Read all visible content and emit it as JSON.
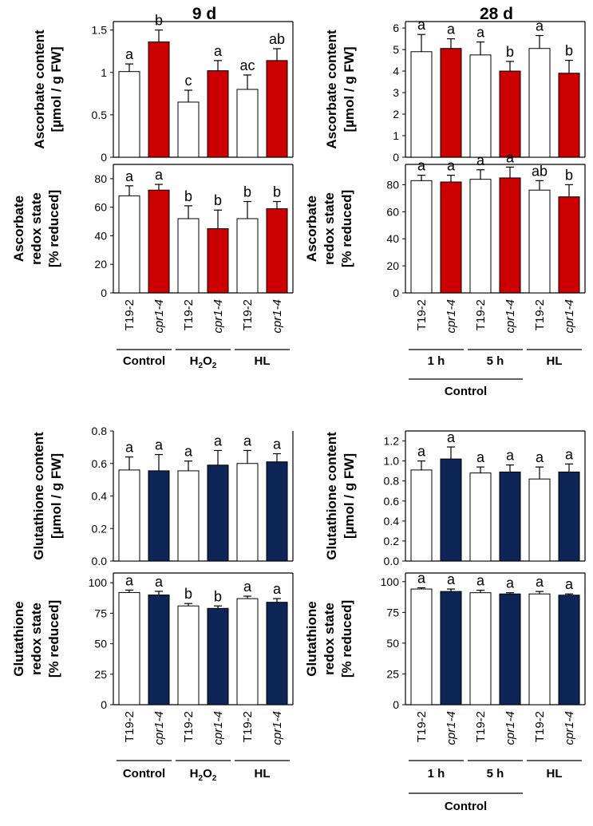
{
  "panel_titles": {
    "left": "9 d",
    "right": "28 d"
  },
  "groups": {
    "left": [
      "Control",
      "H2O2",
      "HL"
    ],
    "right_sub": [
      "1 h",
      "5 h",
      "HL"
    ],
    "right_super": "Control"
  },
  "chart_data": [
    {
      "id": "asc9",
      "type": "bar",
      "title": "Ascorbate content, 9 d",
      "ylabel": [
        "Ascorbate content",
        "[µmol / g FW]"
      ],
      "ylim": [
        0,
        1.6
      ],
      "yticks": [
        0,
        0.5,
        1,
        1.5
      ],
      "tick_labels": [
        "0",
        "0.5",
        "1",
        "1.5"
      ],
      "categories": [
        "T19-2",
        "cpr1-4",
        "T19-2",
        "cpr1-4",
        "T19-2",
        "cpr1-4"
      ],
      "values": [
        1.01,
        1.36,
        0.65,
        1.02,
        0.8,
        1.14
      ],
      "errors": [
        0.09,
        0.14,
        0.14,
        0.12,
        0.17,
        0.14
      ],
      "letters": [
        "a",
        "b",
        "c",
        "a",
        "ac",
        "ab"
      ],
      "colors": [
        "#ffffff",
        "#cc0000",
        "#ffffff",
        "#cc0000",
        "#ffffff",
        "#cc0000"
      ]
    },
    {
      "id": "asr9",
      "type": "bar",
      "title": "Ascorbate redox state, 9 d",
      "ylabel": [
        "Ascorbate",
        "redox state",
        "[% reduced]"
      ],
      "ylim": [
        0,
        90
      ],
      "yticks": [
        0,
        20,
        40,
        60,
        80
      ],
      "tick_labels": [
        "0",
        "20",
        "40",
        "60",
        "80"
      ],
      "categories": [
        "T19-2",
        "cpr1-4",
        "T19-2",
        "cpr1-4",
        "T19-2",
        "cpr1-4"
      ],
      "values": [
        68,
        72,
        52,
        45,
        52,
        59
      ],
      "errors": [
        7,
        4,
        9,
        13,
        12,
        5
      ],
      "letters": [
        "a",
        "a",
        "b",
        "b",
        "b",
        "b"
      ],
      "colors": [
        "#ffffff",
        "#cc0000",
        "#ffffff",
        "#cc0000",
        "#ffffff",
        "#cc0000"
      ]
    },
    {
      "id": "asc28",
      "type": "bar",
      "title": "Ascorbate content, 28 d",
      "ylabel": [
        "Ascorbate content",
        "[µmol / g FW]"
      ],
      "ylim": [
        0,
        6.3
      ],
      "yticks": [
        0,
        1,
        2,
        3,
        4,
        5,
        6
      ],
      "tick_labels": [
        "0",
        "1",
        "2",
        "3",
        "4",
        "5",
        "6"
      ],
      "categories": [
        "T19-2",
        "cpr1-4",
        "T19-2",
        "cpr1-4",
        "T19-2",
        "cpr1-4"
      ],
      "values": [
        4.9,
        5.05,
        4.75,
        4.0,
        5.05,
        3.9
      ],
      "errors": [
        0.8,
        0.45,
        0.6,
        0.45,
        0.6,
        0.6
      ],
      "letters": [
        "a",
        "a",
        "a",
        "b",
        "a",
        "b"
      ],
      "colors": [
        "#ffffff",
        "#cc0000",
        "#ffffff",
        "#cc0000",
        "#ffffff",
        "#cc0000"
      ]
    },
    {
      "id": "asr28",
      "type": "bar",
      "title": "Ascorbate redox state, 28 d",
      "ylabel": [
        "Ascorbate",
        "redox state",
        "[% reduced]"
      ],
      "ylim": [
        0,
        95
      ],
      "yticks": [
        0,
        20,
        40,
        60,
        80
      ],
      "tick_labels": [
        "0",
        "20",
        "40",
        "60",
        "80"
      ],
      "categories": [
        "T19-2",
        "cpr1-4",
        "T19-2",
        "cpr1-4",
        "T19-2",
        "cpr1-4"
      ],
      "values": [
        83,
        82,
        84,
        85,
        76,
        71
      ],
      "errors": [
        4,
        5,
        7,
        8,
        7,
        9
      ],
      "letters": [
        "a",
        "a",
        "a",
        "a",
        "ab",
        "b"
      ],
      "colors": [
        "#ffffff",
        "#cc0000",
        "#ffffff",
        "#cc0000",
        "#ffffff",
        "#cc0000"
      ]
    },
    {
      "id": "glc9",
      "type": "bar",
      "title": "Glutathione content, 9 d",
      "ylabel": [
        "Glutathione content",
        "[µmol / g FW]"
      ],
      "ylim": [
        0,
        0.8
      ],
      "yticks": [
        0,
        0.2,
        0.4,
        0.6,
        0.8
      ],
      "tick_labels": [
        "0.0",
        "0.2",
        "0.4",
        "0.6",
        "0.8"
      ],
      "categories": [
        "T19-2",
        "cpr1-4",
        "T19-2",
        "cpr1-4",
        "T19-2",
        "cpr1-4"
      ],
      "values": [
        0.56,
        0.555,
        0.555,
        0.59,
        0.6,
        0.61
      ],
      "errors": [
        0.08,
        0.1,
        0.06,
        0.09,
        0.08,
        0.05
      ],
      "letters": [
        "a",
        "a",
        "a",
        "a",
        "a",
        "a"
      ],
      "colors": [
        "#ffffff",
        "#0d2457",
        "#ffffff",
        "#0d2457",
        "#ffffff",
        "#0d2457"
      ]
    },
    {
      "id": "glr9",
      "type": "bar",
      "title": "Glutathione redox state, 9 d",
      "ylabel": [
        "Glutathione",
        "redox state",
        "[% reduced]"
      ],
      "ylim": [
        0,
        108
      ],
      "yticks": [
        0,
        25,
        50,
        75,
        100
      ],
      "tick_labels": [
        "0",
        "25",
        "50",
        "75",
        "100"
      ],
      "categories": [
        "T19-2",
        "cpr1-4",
        "T19-2",
        "cpr1-4",
        "T19-2",
        "cpr1-4"
      ],
      "values": [
        92,
        90,
        81,
        79,
        87,
        84
      ],
      "errors": [
        2,
        3,
        2,
        2,
        2,
        3
      ],
      "letters": [
        "a",
        "a",
        "b",
        "b",
        "a",
        "a"
      ],
      "colors": [
        "#ffffff",
        "#0d2457",
        "#ffffff",
        "#0d2457",
        "#ffffff",
        "#0d2457"
      ]
    },
    {
      "id": "glc28",
      "type": "bar",
      "title": "Glutathione content, 28 d",
      "ylabel": [
        "Glutathione content",
        "[µmol / g FW]"
      ],
      "ylim": [
        0,
        1.3
      ],
      "yticks": [
        0,
        0.2,
        0.4,
        0.6,
        0.8,
        1.0,
        1.2
      ],
      "tick_labels": [
        "0.0",
        "0.2",
        "0.4",
        "0.6",
        "0.8",
        "1.0",
        "1.2"
      ],
      "categories": [
        "T19-2",
        "cpr1-4",
        "T19-2",
        "cpr1-4",
        "T19-2",
        "cpr1-4"
      ],
      "values": [
        0.91,
        1.02,
        0.88,
        0.89,
        0.82,
        0.89
      ],
      "errors": [
        0.09,
        0.12,
        0.06,
        0.07,
        0.12,
        0.08
      ],
      "letters": [
        "a",
        "a",
        "a",
        "a",
        "a",
        "a"
      ],
      "colors": [
        "#ffffff",
        "#0d2457",
        "#ffffff",
        "#0d2457",
        "#ffffff",
        "#0d2457"
      ]
    },
    {
      "id": "glr28",
      "type": "bar",
      "title": "Glutathione redox state, 28 d",
      "ylabel": [
        "Glutathione",
        "redox state",
        "[% reduced]"
      ],
      "ylim": [
        0,
        107
      ],
      "yticks": [
        0,
        25,
        50,
        75,
        100
      ],
      "tick_labels": [
        "0",
        "25",
        "50",
        "75",
        "100"
      ],
      "categories": [
        "T19-2",
        "cpr1-4",
        "T19-2",
        "cpr1-4",
        "T19-2",
        "cpr1-4"
      ],
      "values": [
        94,
        92,
        91,
        90,
        90,
        89
      ],
      "errors": [
        1,
        2,
        2,
        1,
        2,
        1
      ],
      "letters": [
        "a",
        "a",
        "a",
        "a",
        "a",
        "a"
      ],
      "colors": [
        "#ffffff",
        "#0d2457",
        "#ffffff",
        "#0d2457",
        "#ffffff",
        "#0d2457"
      ]
    }
  ]
}
